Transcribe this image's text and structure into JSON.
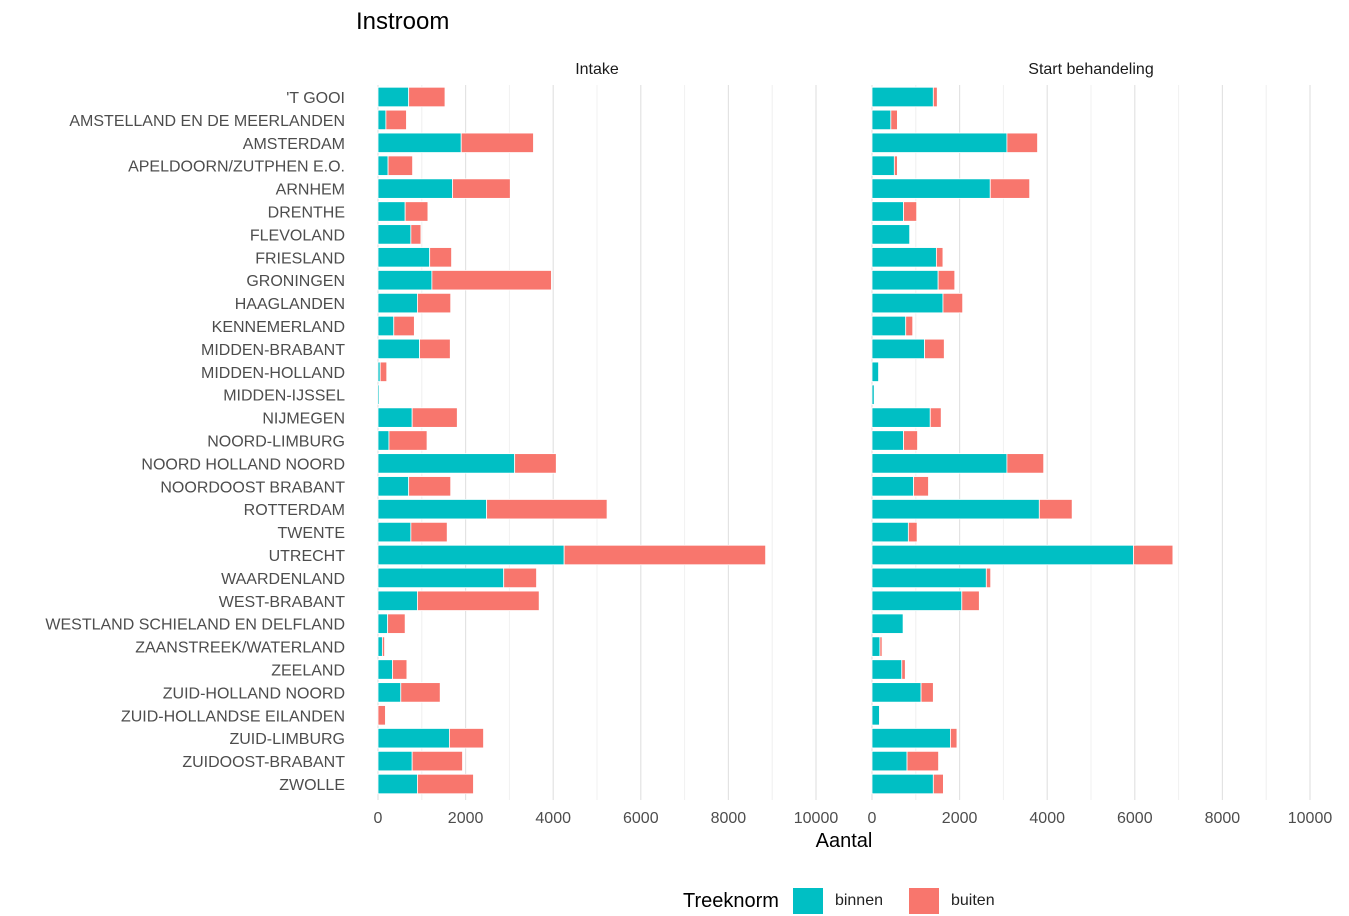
{
  "chart_data": {
    "type": "bar",
    "orientation": "horizontal",
    "stacked": true,
    "title": "Instroom",
    "xlabel": "Aantal",
    "xlim": [
      0,
      10000
    ],
    "x_ticks": [
      0,
      2000,
      4000,
      6000,
      8000,
      10000
    ],
    "x_tick_labels": [
      "0",
      "2000",
      "4000",
      "6000",
      "8000",
      "10000"
    ],
    "grid": true,
    "legend": {
      "title": "Treeknorm",
      "position": "bottom",
      "entries": [
        {
          "name": "binnen",
          "color": "#00BFC4"
        },
        {
          "name": "buiten",
          "color": "#F8766D"
        }
      ]
    },
    "categories": [
      "'T GOOI",
      "AMSTELLAND EN DE MEERLANDEN",
      "AMSTERDAM",
      "APELDOORN/ZUTPHEN E.O.",
      "ARNHEM",
      "DRENTHE",
      "FLEVOLAND",
      "FRIESLAND",
      "GRONINGEN",
      "HAAGLANDEN",
      "KENNEMERLAND",
      "MIDDEN-BRABANT",
      "MIDDEN-HOLLAND",
      "MIDDEN-IJSSEL",
      "NIJMEGEN",
      "NOORD-LIMBURG",
      "NOORD HOLLAND NOORD",
      "NOORDOOST BRABANT",
      "ROTTERDAM",
      "TWENTE",
      "UTRECHT",
      "WAARDENLAND",
      "WEST-BRABANT",
      "WESTLAND SCHIELAND EN DELFLAND",
      "ZAANSTREEK/WATERLAND",
      "ZEELAND",
      "ZUID-HOLLAND NOORD",
      "ZUID-HOLLANDSE EILANDEN",
      "ZUID-LIMBURG",
      "ZUIDOOST-BRABANT",
      "ZWOLLE"
    ],
    "panels": [
      {
        "title": "Intake",
        "series": [
          {
            "name": "binnen",
            "values": [
              700,
              180,
              1900,
              230,
              1700,
              620,
              750,
              1180,
              1230,
              900,
              360,
              950,
              50,
              30,
              780,
              250,
              3120,
              700,
              2480,
              750,
              4250,
              2870,
              900,
              220,
              100,
              330,
              520,
              0,
              1630,
              780,
              900
            ]
          },
          {
            "name": "buiten",
            "values": [
              830,
              470,
              1650,
              560,
              1320,
              520,
              230,
              500,
              2730,
              760,
              470,
              700,
              150,
              0,
              1030,
              870,
              950,
              960,
              2750,
              830,
              4600,
              750,
              2780,
              400,
              50,
              330,
              900,
              170,
              780,
              1150,
              1280
            ]
          }
        ]
      },
      {
        "title": "Start behandeling",
        "series": [
          {
            "name": "binnen",
            "values": [
              1400,
              430,
              3080,
              510,
              2700,
              720,
              860,
              1470,
              1510,
              1620,
              770,
              1200,
              150,
              50,
              1330,
              720,
              3080,
              950,
              3820,
              830,
              5970,
              2610,
              2050,
              710,
              180,
              680,
              1120,
              170,
              1790,
              800,
              1400
            ]
          },
          {
            "name": "buiten",
            "values": [
              90,
              150,
              700,
              70,
              900,
              300,
              0,
              150,
              380,
              450,
              160,
              450,
              0,
              0,
              250,
              320,
              840,
              340,
              750,
              200,
              900,
              100,
              400,
              0,
              50,
              80,
              280,
              0,
              150,
              720,
              230
            ]
          }
        ]
      }
    ]
  }
}
